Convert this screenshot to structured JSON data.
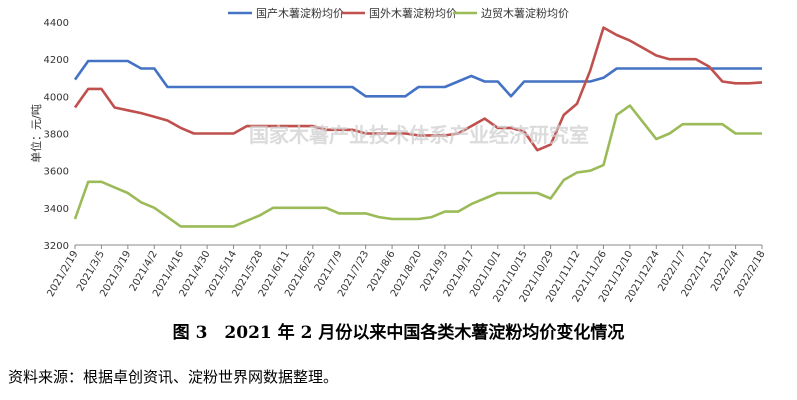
{
  "chart_data": {
    "type": "line",
    "ylabel": "单位：元/吨",
    "ylim": [
      3200,
      4400
    ],
    "yticks": [
      3200,
      3400,
      3600,
      3800,
      4000,
      4200,
      4400
    ],
    "grid": false,
    "legend": "top-center",
    "watermark": "国家木薯产业技术体系产业经济研究室",
    "x": [
      "2021/2/19",
      "2021/2/26",
      "2021/3/5",
      "2021/3/12",
      "2021/3/19",
      "2021/3/26",
      "2021/4/2",
      "2021/4/9",
      "2021/4/16",
      "2021/4/23",
      "2021/4/30",
      "2021/5/7",
      "2021/5/14",
      "2021/5/21",
      "2021/5/28",
      "2021/6/4",
      "2021/6/11",
      "2021/6/18",
      "2021/6/25",
      "2021/7/2",
      "2021/7/9",
      "2021/7/16",
      "2021/7/23",
      "2021/7/30",
      "2021/8/6",
      "2021/8/13",
      "2021/8/20",
      "2021/8/27",
      "2021/9/3",
      "2021/9/10",
      "2021/9/17",
      "2021/9/24",
      "2021/10/1",
      "2021/10/8",
      "2021/10/15",
      "2021/10/22",
      "2021/10/29",
      "2021/11/5",
      "2021/11/12",
      "2021/11/19",
      "2021/11/26",
      "2021/12/3",
      "2021/12/10",
      "2021/12/17",
      "2021/12/24",
      "2021/12/31",
      "2022/1/7",
      "2022/1/14",
      "2022/1/21",
      "2022/1/28",
      "2022/2/4",
      "2022/2/11",
      "2022/2/18"
    ],
    "xticks": [
      "2021/2/19",
      "2021/3/5",
      "2021/3/19",
      "2021/4/2",
      "2021/4/16",
      "2021/4/30",
      "2021/5/14",
      "2021/5/28",
      "2021/6/11",
      "2021/6/25",
      "2021/7/9",
      "2021/7/23",
      "2021/8/6",
      "2021/8/20",
      "2021/9/3",
      "2021/9/17",
      "2021/10/1",
      "2021/10/15",
      "2021/10/29",
      "2021/11/12",
      "2021/11/26",
      "2021/12/10",
      "2021/12/24",
      "2022/1/7",
      "2022/1/21",
      "2022/2/4",
      "2022/2/18"
    ],
    "series": [
      {
        "name": "国产木薯淀粉均价",
        "color": "#4472c4",
        "values": [
          4090,
          4190,
          4190,
          4190,
          4190,
          4150,
          4150,
          4050,
          4050,
          4050,
          4050,
          4050,
          4050,
          4050,
          4050,
          4050,
          4050,
          4050,
          4050,
          4050,
          4050,
          4050,
          4000,
          4000,
          4000,
          4000,
          4050,
          4050,
          4050,
          4080,
          4110,
          4080,
          4080,
          4000,
          4080,
          4080,
          4080,
          4080,
          4080,
          4080,
          4100,
          4150,
          4150,
          4150,
          4150,
          4150,
          4150,
          4150,
          4150,
          4150,
          4150,
          4150,
          4150
        ]
      },
      {
        "name": "国外木薯淀粉均价",
        "color": "#c0504d",
        "values": [
          3940,
          4040,
          4040,
          3940,
          3925,
          3910,
          3890,
          3870,
          3830,
          3800,
          3800,
          3800,
          3800,
          3840,
          3840,
          3840,
          3840,
          3840,
          3840,
          3820,
          3820,
          3820,
          3800,
          3800,
          3800,
          3800,
          3790,
          3790,
          3790,
          3800,
          3840,
          3880,
          3830,
          3830,
          3810,
          3710,
          3740,
          3900,
          3960,
          4140,
          4370,
          4330,
          4300,
          4260,
          4220,
          4200,
          4200,
          4200,
          4160,
          4080,
          4070,
          4070,
          4075
        ]
      },
      {
        "name": "边贸木薯淀粉均价",
        "color": "#9bbb59",
        "values": [
          3340,
          3540,
          3540,
          3510,
          3480,
          3430,
          3400,
          3350,
          3300,
          3300,
          3300,
          3300,
          3300,
          3330,
          3360,
          3400,
          3400,
          3400,
          3400,
          3400,
          3370,
          3370,
          3370,
          3350,
          3340,
          3340,
          3340,
          3350,
          3380,
          3380,
          3420,
          3450,
          3480,
          3480,
          3480,
          3480,
          3450,
          3550,
          3590,
          3600,
          3630,
          3900,
          3950,
          3860,
          3770,
          3800,
          3850,
          3850,
          3850,
          3850,
          3800,
          3800,
          3800
        ]
      }
    ]
  },
  "caption": "图 3　2021 年 2 月份以来中国各类木薯淀粉均价变化情况",
  "source": "资料来源：根据卓创资讯、淀粉世界网数据整理。"
}
